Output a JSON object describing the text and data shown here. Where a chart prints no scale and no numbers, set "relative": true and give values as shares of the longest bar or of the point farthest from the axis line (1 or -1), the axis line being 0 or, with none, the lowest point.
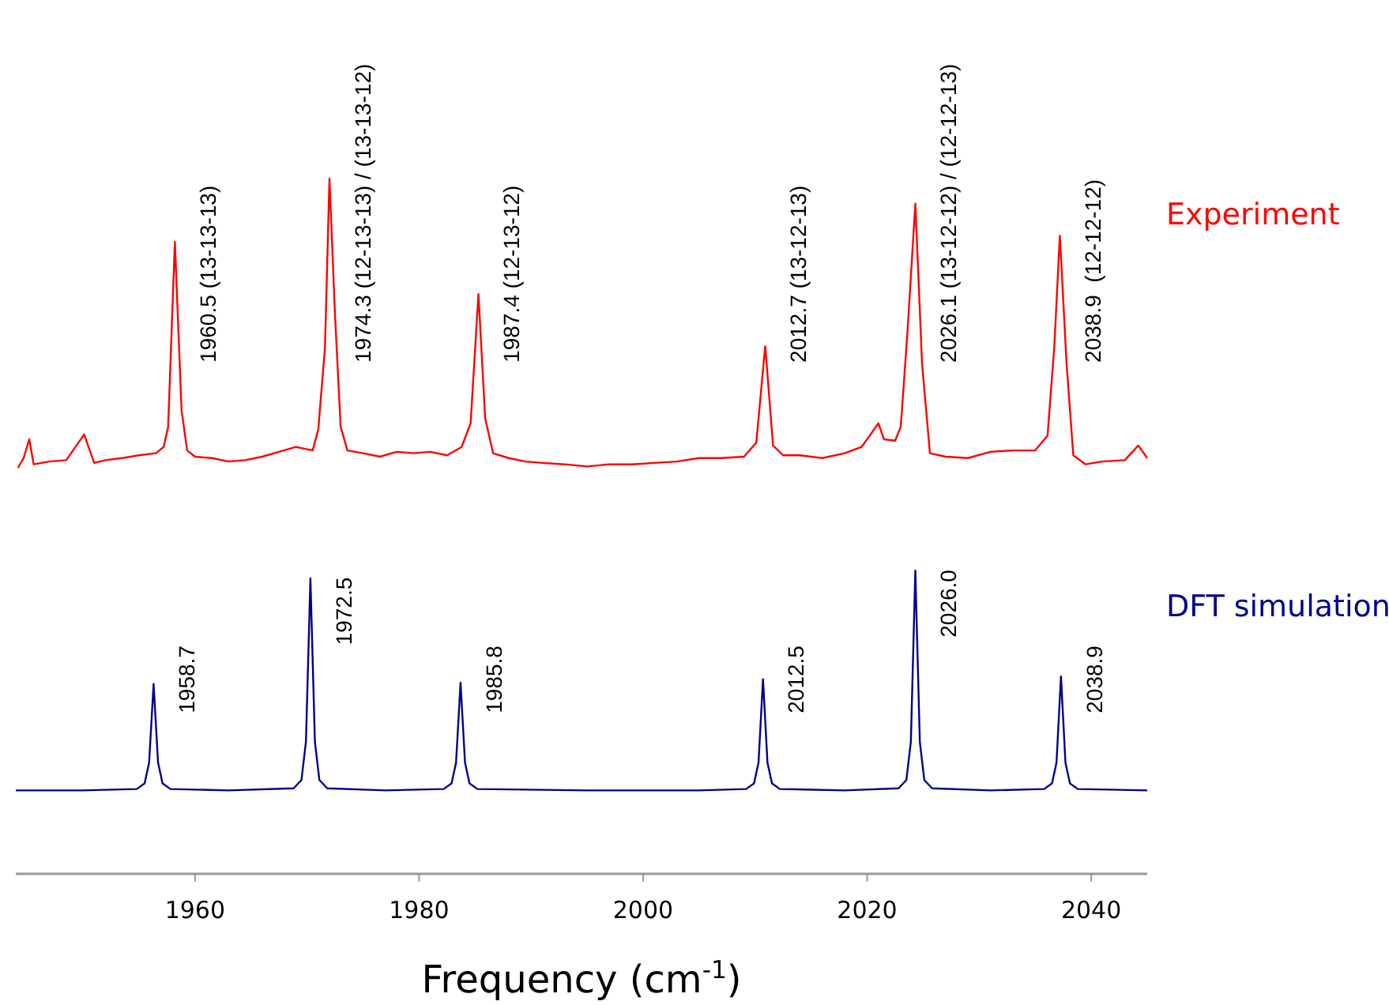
{
  "chart_data": {
    "type": "line",
    "relative": true,
    "xlabel": "Frequency (cm$^{-1}$)",
    "xlim": [
      1944,
      2045
    ],
    "xticks": [
      1960,
      1980,
      2000,
      2020,
      2040
    ],
    "grid": false,
    "legend": "right",
    "marker": "none",
    "line_style": "solid",
    "series": [
      {
        "name": "Experiment",
        "color": "#ff0000",
        "x": [
          1944.2,
          1944.7,
          1945.2,
          1945.6,
          1947,
          1948.5,
          1950.1,
          1951,
          1952,
          1953.5,
          1955,
          1956.5,
          1957.2,
          1957.6,
          1958.2,
          1958.8,
          1959.3,
          1960,
          1961.5,
          1963,
          1964.5,
          1966,
          1967.5,
          1969,
          1970.5,
          1971,
          1971.6,
          1972,
          1972.5,
          1973,
          1973.6,
          1975,
          1976.5,
          1978,
          1979.5,
          1981,
          1982.5,
          1983.8,
          1984.6,
          1985.3,
          1985.9,
          1986.6,
          1988,
          1989.5,
          1991,
          1993,
          1995,
          1997,
          1999,
          2001,
          2003,
          2005,
          2007,
          2009,
          2010.1,
          2010.9,
          2011.6,
          2012.5,
          2014,
          2016,
          2018,
          2019.5,
          2020.3,
          2021,
          2021.5,
          2022.5,
          2023,
          2023.6,
          2024.3,
          2024.9,
          2025.6,
          2027,
          2029,
          2031,
          2033,
          2035,
          2036.1,
          2036.7,
          2037.2,
          2037.8,
          2038.4,
          2039.5,
          2041,
          2043,
          2044.2,
          2045
        ],
        "values": [
          0.584,
          0.598,
          0.625,
          0.589,
          0.593,
          0.595,
          0.632,
          0.591,
          0.595,
          0.598,
          0.602,
          0.605,
          0.614,
          0.643,
          0.909,
          0.666,
          0.609,
          0.6,
          0.598,
          0.593,
          0.595,
          0.6,
          0.607,
          0.614,
          0.609,
          0.639,
          0.757,
          1,
          0.802,
          0.643,
          0.609,
          0.605,
          0.6,
          0.607,
          0.605,
          0.607,
          0.602,
          0.614,
          0.648,
          0.834,
          0.655,
          0.605,
          0.598,
          0.593,
          0.591,
          0.589,
          0.586,
          0.589,
          0.589,
          0.591,
          0.593,
          0.598,
          0.598,
          0.6,
          0.62,
          0.759,
          0.616,
          0.602,
          0.602,
          0.598,
          0.605,
          0.614,
          0.632,
          0.648,
          0.625,
          0.623,
          0.643,
          0.78,
          0.964,
          0.734,
          0.605,
          0.6,
          0.598,
          0.607,
          0.609,
          0.609,
          0.63,
          0.757,
          0.918,
          0.734,
          0.602,
          0.589,
          0.593,
          0.595,
          0.616,
          0.598
        ]
      },
      {
        "name": "DFT simulation",
        "color": "#00008b",
        "x": [
          1944,
          1950,
          1954.8,
          1955.5,
          1955.9,
          1956.3,
          1956.7,
          1957.1,
          1957.8,
          1963,
          1968.8,
          1969.5,
          1969.9,
          1970.3,
          1970.7,
          1971.1,
          1971.8,
          1977,
          1982.2,
          1982.9,
          1983.3,
          1983.7,
          1984.1,
          1984.5,
          1985.2,
          1995,
          2005,
          2009.2,
          2009.9,
          2010.3,
          2010.7,
          2011.1,
          2011.5,
          2012.2,
          2018,
          2022.8,
          2023.5,
          2023.9,
          2024.3,
          2024.7,
          2025.1,
          2025.8,
          2031,
          2035.8,
          2036.5,
          2036.9,
          2037.3,
          2037.7,
          2038.1,
          2038.8,
          2045
        ],
        "values": [
          0.12,
          0.12,
          0.122,
          0.13,
          0.16,
          0.273,
          0.16,
          0.13,
          0.122,
          0.12,
          0.123,
          0.135,
          0.19,
          0.425,
          0.19,
          0.135,
          0.123,
          0.12,
          0.122,
          0.13,
          0.16,
          0.275,
          0.16,
          0.13,
          0.122,
          0.12,
          0.12,
          0.122,
          0.13,
          0.16,
          0.28,
          0.16,
          0.13,
          0.122,
          0.12,
          0.123,
          0.135,
          0.19,
          0.436,
          0.19,
          0.135,
          0.123,
          0.12,
          0.122,
          0.13,
          0.16,
          0.284,
          0.16,
          0.13,
          0.122,
          0.12
        ]
      }
    ],
    "annotations": [
      {
        "text": "1960.5 (13-13-13)",
        "x": 1958.2,
        "y": 0.909
      },
      {
        "text": "1974.3 (12-13-13) / (13-13-12)",
        "x": 1972,
        "y": 1
      },
      {
        "text": "1987.4 (12-13-12)",
        "x": 1985.3,
        "y": 0.834
      },
      {
        "text": "2012.7 (13-12-13)",
        "x": 2010.9,
        "y": 0.759
      },
      {
        "text": "2026.1 (13-12-12) / (12-12-13)",
        "x": 2024.3,
        "y": 0.964
      },
      {
        "text": "2038.9  (12-12-12)",
        "x": 2037.2,
        "y": 0.918
      },
      {
        "text": "1958.7",
        "x": 1956.3,
        "y": 0.273
      },
      {
        "text": "1972.5",
        "x": 1970.3,
        "y": 0.425
      },
      {
        "text": "1985.8",
        "x": 1983.7,
        "y": 0.275
      },
      {
        "text": "2012.5",
        "x": 2010.7,
        "y": 0.28
      },
      {
        "text": "2026.0",
        "x": 2024.3,
        "y": 0.436
      },
      {
        "text": "2038.9",
        "x": 2037.3,
        "y": 0.284
      }
    ]
  }
}
